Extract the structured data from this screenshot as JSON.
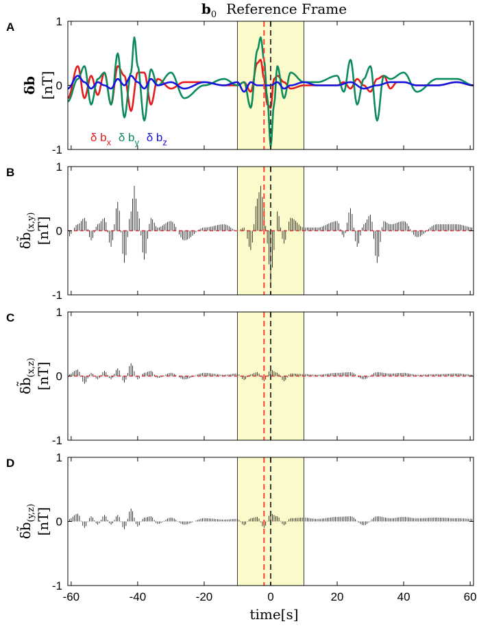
{
  "figure": {
    "title": "b₀ Reference Frame",
    "title_bold_part": "b",
    "title_sub": "0",
    "title_rest": "Reference Frame",
    "xlabel": "time[s]"
  },
  "chart_data": [
    {
      "panel": "A",
      "type": "line",
      "ylabel": "δb [nT]",
      "ylabel_main": "δb",
      "ylabel_unit": "[nT]",
      "xlim": [
        -61,
        61
      ],
      "ylim": [
        -1,
        1
      ],
      "xticks": [
        -60,
        -40,
        -20,
        0,
        20,
        40,
        60
      ],
      "yticks": [
        -1,
        0,
        1
      ],
      "shaded_interval": [
        -10,
        10
      ],
      "shade_color": "#fbfacb",
      "vlines": [
        {
          "x": -2,
          "color": "#ff3b3b"
        },
        {
          "x": 0,
          "color": "#3a3a3a"
        }
      ],
      "legend": [
        {
          "label": "δ b",
          "sub": "x",
          "color": "#e41a1c"
        },
        {
          "label": "δ b",
          "sub": "y",
          "color": "#0b8a5a"
        },
        {
          "label": "δ b",
          "sub": "z",
          "color": "#1414e0"
        }
      ],
      "series": [
        {
          "name": "δ bx",
          "color": "#e41a1c",
          "x": [
            -61,
            -58,
            -56,
            -54,
            -52,
            -50,
            -48,
            -46,
            -44,
            -42,
            -40,
            -38,
            -36,
            -34,
            -30,
            -26,
            -20,
            -14,
            -10,
            -8,
            -6,
            -4,
            -3,
            -2,
            -1,
            0,
            1,
            2,
            4,
            6,
            10,
            14,
            20,
            22,
            24,
            26,
            28,
            30,
            32,
            34,
            36,
            38,
            40,
            44,
            50,
            56,
            61
          ],
          "values": [
            -0.2,
            0.3,
            -0.2,
            0.15,
            -0.15,
            0.2,
            -0.3,
            0.3,
            0.15,
            -0.4,
            0.2,
            0.2,
            -0.3,
            0.1,
            -0.05,
            0.05,
            0.05,
            0.0,
            0.0,
            0.05,
            -0.1,
            0.35,
            0.4,
            0.1,
            -0.3,
            -0.35,
            0.1,
            0.15,
            0.05,
            -0.05,
            0.0,
            0.0,
            0.0,
            0.05,
            -0.05,
            0.1,
            0.0,
            -0.1,
            0.1,
            0.15,
            -0.05,
            0.05,
            0.05,
            0.0,
            0.0,
            0.05,
            0.0
          ]
        },
        {
          "name": "δ by",
          "color": "#0b8a5a",
          "x": [
            -61,
            -58,
            -56,
            -54,
            -52,
            -50,
            -48,
            -46,
            -44,
            -42,
            -41,
            -40,
            -38,
            -36,
            -34,
            -30,
            -26,
            -20,
            -14,
            -10,
            -8,
            -6,
            -4,
            -3,
            -2,
            -1,
            0,
            1,
            2,
            4,
            6,
            10,
            14,
            20,
            22,
            24,
            26,
            28,
            30,
            32,
            34,
            36,
            40,
            44,
            50,
            56,
            61
          ],
          "values": [
            -0.25,
            0.1,
            0.3,
            -0.3,
            0.1,
            0.2,
            -0.3,
            0.5,
            -0.5,
            0.2,
            0.75,
            0.3,
            -0.55,
            0.25,
            0.0,
            0.2,
            -0.2,
            0.0,
            0.1,
            0.0,
            0.05,
            -0.35,
            0.55,
            0.75,
            0.4,
            -0.2,
            -0.95,
            -0.3,
            0.3,
            -0.2,
            0.2,
            0.05,
            0.05,
            0.15,
            -0.1,
            0.4,
            -0.3,
            0.1,
            0.3,
            -0.55,
            0.15,
            0.1,
            0.2,
            -0.1,
            0.1,
            0.1,
            0.0
          ]
        },
        {
          "name": "δ bz",
          "color": "#1414e0",
          "x": [
            -61,
            -58,
            -56,
            -54,
            -52,
            -50,
            -48,
            -46,
            -44,
            -42,
            -40,
            -38,
            -36,
            -34,
            -30,
            -26,
            -20,
            -14,
            -10,
            -8,
            -6,
            -4,
            -2,
            0,
            2,
            4,
            6,
            10,
            14,
            20,
            24,
            28,
            32,
            36,
            40,
            44,
            50,
            56,
            61
          ],
          "values": [
            -0.05,
            0.15,
            0.05,
            -0.05,
            0.05,
            0.0,
            -0.05,
            0.1,
            0.0,
            0.15,
            0.05,
            -0.05,
            0.1,
            0.0,
            0.05,
            -0.05,
            0.05,
            0.0,
            0.05,
            -0.1,
            0.05,
            0.0,
            0.0,
            0.0,
            0.05,
            -0.05,
            0.0,
            0.05,
            0.0,
            0.0,
            0.05,
            -0.05,
            0.0,
            0.05,
            0.05,
            0.0,
            0.0,
            0.05,
            0.0
          ]
        }
      ]
    },
    {
      "panel": "B",
      "type": "bar",
      "ylabel": "δb̃(x,y) [nT]",
      "ylabel_main": "δb̃",
      "ylabel_sub": "(x,y)",
      "ylabel_unit": "[nT]",
      "xlim": [
        -61,
        61
      ],
      "ylim": [
        -1,
        1
      ],
      "xticks": [
        -60,
        -40,
        -20,
        0,
        20,
        40,
        60
      ],
      "yticks": [
        -1,
        0,
        1
      ],
      "shaded_interval": [
        -10,
        10
      ],
      "vlines": [
        {
          "x": -2,
          "color": "#ff3b3b"
        },
        {
          "x": 0,
          "color": "#3a3a3a"
        }
      ],
      "baseline_color": "#ff3b3b",
      "envelope": {
        "x": [
          -61,
          -58,
          -56,
          -54,
          -52,
          -50,
          -48,
          -46,
          -44,
          -42,
          -41,
          -40,
          -38,
          -36,
          -34,
          -30,
          -26,
          -20,
          -14,
          -10,
          -8,
          -6,
          -4,
          -3,
          -2,
          -1,
          0,
          1,
          2,
          4,
          6,
          10,
          14,
          20,
          22,
          24,
          26,
          28,
          30,
          32,
          34,
          36,
          40,
          44,
          50,
          56,
          61
        ],
        "values": [
          -0.1,
          0.1,
          0.2,
          -0.15,
          0.1,
          0.2,
          -0.25,
          0.45,
          -0.5,
          0.3,
          0.7,
          0.3,
          -0.45,
          0.2,
          0.05,
          0.15,
          -0.15,
          0.05,
          0.1,
          0.0,
          0.05,
          -0.3,
          0.5,
          0.7,
          0.35,
          -0.2,
          -0.85,
          -0.3,
          0.3,
          -0.2,
          0.2,
          0.05,
          0.05,
          0.15,
          -0.1,
          0.35,
          -0.25,
          0.1,
          0.25,
          -0.5,
          0.15,
          0.1,
          0.15,
          -0.1,
          0.1,
          0.1,
          0.05
        ]
      }
    },
    {
      "panel": "C",
      "type": "bar",
      "ylabel": "δb̃(x,z) [nT]",
      "ylabel_main": "δb̃",
      "ylabel_sub": "(x,z)",
      "ylabel_unit": "[nT]",
      "xlim": [
        -61,
        61
      ],
      "ylim": [
        -1,
        1
      ],
      "xticks": [
        -60,
        -40,
        -20,
        0,
        20,
        40,
        60
      ],
      "yticks": [
        -1,
        0,
        1
      ],
      "shaded_interval": [
        -10,
        10
      ],
      "vlines": [
        {
          "x": -2,
          "color": "#ff3b3b"
        },
        {
          "x": 0,
          "color": "#3a3a3a"
        }
      ],
      "baseline_color": "#ff3b3b",
      "envelope": {
        "x": [
          -61,
          -58,
          -56,
          -54,
          -52,
          -50,
          -48,
          -46,
          -44,
          -42,
          -40,
          -38,
          -36,
          -34,
          -30,
          -26,
          -20,
          -14,
          -10,
          -8,
          -6,
          -4,
          -2,
          0,
          2,
          4,
          6,
          10,
          14,
          20,
          24,
          28,
          32,
          36,
          40,
          44,
          50,
          56,
          61
        ],
        "values": [
          0.02,
          0.1,
          -0.12,
          0.05,
          -0.05,
          0.08,
          -0.05,
          0.12,
          -0.1,
          0.2,
          -0.05,
          0.05,
          0.08,
          -0.03,
          0.05,
          -0.05,
          0.05,
          0.02,
          0.04,
          -0.06,
          0.03,
          0.06,
          -0.08,
          0.1,
          0.05,
          -0.08,
          0.04,
          0.03,
          0.02,
          0.05,
          0.06,
          -0.05,
          0.06,
          0.04,
          0.05,
          0.02,
          0.03,
          0.04,
          0.02
        ]
      }
    },
    {
      "panel": "D",
      "type": "bar",
      "ylabel": "δb̃(y,z) [nT]",
      "ylabel_main": "δb̃",
      "ylabel_sub": "(y,z)",
      "ylabel_unit": "[nT]",
      "xlim": [
        -61,
        61
      ],
      "ylim": [
        -1,
        1
      ],
      "xticks": [
        -60,
        -40,
        -20,
        0,
        20,
        40,
        60
      ],
      "yticks": [
        -1,
        0,
        1
      ],
      "xticklabels": [
        "-60",
        "-40",
        "-20",
        "0",
        "20",
        "40",
        "60"
      ],
      "shaded_interval": [
        -10,
        10
      ],
      "vlines": [
        {
          "x": -2,
          "color": "#ff3b3b"
        },
        {
          "x": 0,
          "color": "#3a3a3a"
        }
      ],
      "envelope": {
        "x": [
          -61,
          -58,
          -56,
          -54,
          -52,
          -50,
          -48,
          -46,
          -44,
          -42,
          -40,
          -38,
          -36,
          -34,
          -30,
          -26,
          -20,
          -14,
          -10,
          -8,
          -6,
          -4,
          -2,
          0,
          2,
          4,
          6,
          10,
          14,
          20,
          24,
          28,
          32,
          36,
          40,
          44,
          50,
          56,
          61
        ],
        "values": [
          0.03,
          0.12,
          -0.1,
          0.08,
          -0.05,
          0.1,
          -0.05,
          0.1,
          -0.12,
          0.2,
          -0.08,
          0.06,
          0.08,
          -0.04,
          0.06,
          -0.05,
          0.05,
          0.03,
          0.04,
          -0.06,
          0.05,
          0.07,
          -0.1,
          0.12,
          0.08,
          -0.06,
          0.05,
          0.06,
          0.04,
          0.07,
          0.08,
          -0.06,
          0.08,
          0.05,
          0.07,
          0.05,
          0.06,
          0.05,
          0.04
        ]
      }
    }
  ]
}
